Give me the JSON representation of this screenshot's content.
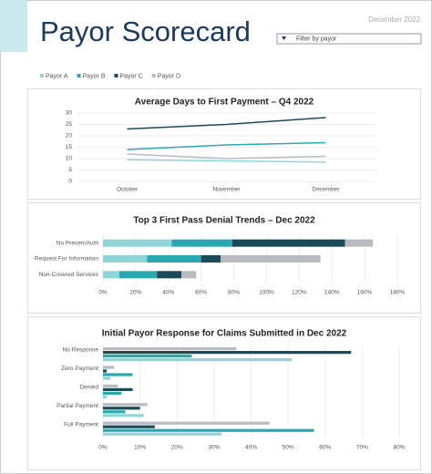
{
  "header": {
    "title": "Payor Scorecard",
    "date": "December 2022",
    "filter": "Filter by payor"
  },
  "chart_data": [
    {
      "type": "line",
      "title": "Average Days to First Payment – Q4 2022",
      "categories": [
        "October",
        "November",
        "December"
      ],
      "series": [
        {
          "name": "Payor A",
          "color": "#8fd5d8",
          "values": [
            9.5,
            9,
            8.5
          ]
        },
        {
          "name": "Payor B",
          "color": "#2aa8b0",
          "values": [
            14,
            16,
            17
          ]
        },
        {
          "name": "Payor C",
          "color": "#1d4a57",
          "values": [
            23,
            25,
            28
          ]
        },
        {
          "name": "Payor D",
          "color": "#b8bcc0",
          "values": [
            12,
            10,
            11
          ]
        }
      ],
      "ylim": [
        0,
        30
      ],
      "yticks": [
        0,
        5,
        10,
        15,
        20,
        25,
        30
      ],
      "grid": true
    },
    {
      "type": "bar",
      "horizontal": true,
      "stacked": true,
      "title": "Top 3 First Pass Denial Trends – Dec 2022",
      "categories": [
        "No Precert/Auth",
        "Request For Information",
        "Non-Covered Services"
      ],
      "series": [
        {
          "name": "Payor A",
          "color": "#8fd5d8",
          "values": [
            42,
            27,
            10
          ]
        },
        {
          "name": "Payor B",
          "color": "#2aa8b0",
          "values": [
            37,
            33,
            23
          ]
        },
        {
          "name": "Payor C",
          "color": "#1d4a57",
          "values": [
            69,
            12,
            15
          ]
        },
        {
          "name": "Payor D",
          "color": "#b8bcc0",
          "values": [
            17,
            61,
            9
          ]
        }
      ],
      "xlim": [
        0,
        180
      ],
      "xticks": [
        {
          "value": 0,
          "label": "0%"
        },
        {
          "value": 20,
          "label": "20%"
        },
        {
          "value": 40,
          "label": "40%"
        },
        {
          "value": 60,
          "label": "60%"
        },
        {
          "value": 80,
          "label": "80%"
        },
        {
          "value": 100,
          "label": "100%"
        },
        {
          "value": 120,
          "label": "120%"
        },
        {
          "value": 140,
          "label": "140%"
        },
        {
          "value": 160,
          "label": "160%"
        },
        {
          "value": 180,
          "label": "180%"
        }
      ],
      "grid": true
    },
    {
      "type": "bar",
      "horizontal": true,
      "stacked": false,
      "title": "Initial Payor Response for Claims Submitted in Dec 2022",
      "categories": [
        "No Response",
        "Zero Payment",
        "Denied",
        "Partial Payment",
        "Full Payment"
      ],
      "series": [
        {
          "name": "Payor A",
          "color": "#8fd5d8",
          "values": [
            51,
            2,
            1,
            11,
            32
          ]
        },
        {
          "name": "Payor B",
          "color": "#2aa8b0",
          "values": [
            24,
            8,
            5,
            6,
            57
          ]
        },
        {
          "name": "Payor C",
          "color": "#1d4a57",
          "values": [
            67,
            1,
            8,
            10,
            14
          ]
        },
        {
          "name": "Payor D",
          "color": "#b8bcc0",
          "values": [
            36,
            3,
            4,
            12,
            45
          ]
        }
      ],
      "xlim": [
        0,
        80
      ],
      "xticks": [
        {
          "value": 0,
          "label": "0%"
        },
        {
          "value": 10,
          "label": "10%"
        },
        {
          "value": 20,
          "label": "20%"
        },
        {
          "value": 30,
          "label": "30%"
        },
        {
          "value": 40,
          "label": "40%"
        },
        {
          "value": 50,
          "label": "50%"
        },
        {
          "value": 60,
          "label": "60%"
        },
        {
          "value": 70,
          "label": "70%"
        },
        {
          "value": 80,
          "label": "80%"
        }
      ],
      "grid": true
    }
  ]
}
